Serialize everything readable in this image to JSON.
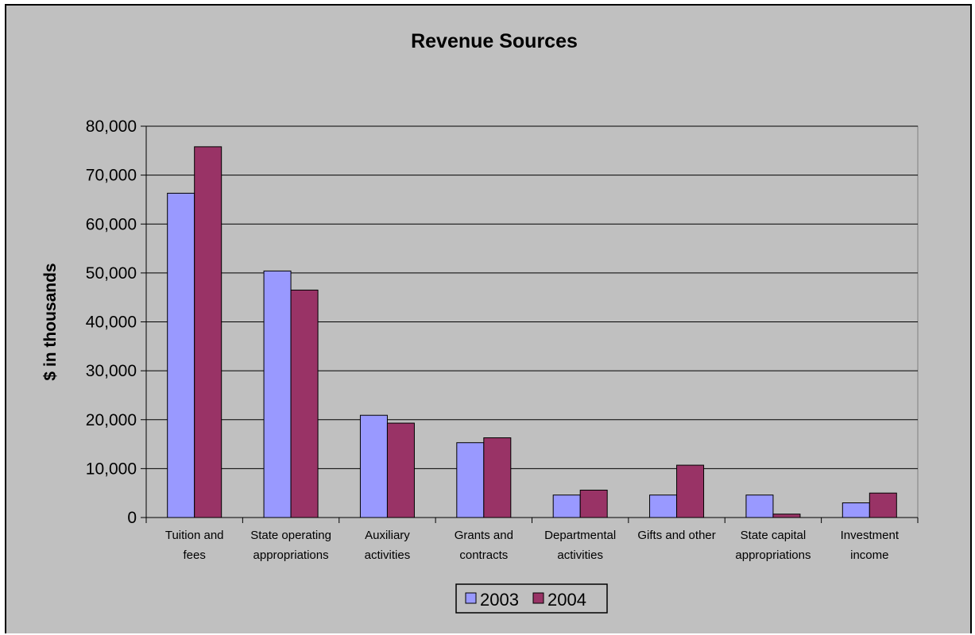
{
  "chart_data": {
    "type": "bar",
    "title": "Revenue Sources",
    "xlabel": "",
    "ylabel": "$ in thousands",
    "ylim": [
      0,
      80000
    ],
    "yticks": [
      "0",
      "10,000",
      "20,000",
      "30,000",
      "40,000",
      "50,000",
      "60,000",
      "70,000",
      "80,000"
    ],
    "ytick_values": [
      0,
      10000,
      20000,
      30000,
      40000,
      50000,
      60000,
      70000,
      80000
    ],
    "grid": true,
    "legend_position": "bottom",
    "categories": [
      [
        "Tuition and",
        "fees"
      ],
      [
        "State operating",
        "appropriations"
      ],
      [
        "Auxiliary",
        "activities"
      ],
      [
        "Grants and",
        "contracts"
      ],
      [
        "Departmental",
        "activities"
      ],
      [
        "Gifts and other"
      ],
      [
        "State capital",
        "appropriations"
      ],
      [
        "Investment",
        "income"
      ]
    ],
    "series": [
      {
        "name": "2003",
        "color": "#9999ff",
        "values": [
          66300,
          50400,
          20900,
          15300,
          4600,
          4600,
          4600,
          3000
        ]
      },
      {
        "name": "2004",
        "color": "#993366",
        "values": [
          75800,
          46500,
          19300,
          16300,
          5600,
          10700,
          700,
          5000
        ]
      }
    ],
    "plot_background": "#c0c0c0",
    "chart_background": "#c0c0c0"
  }
}
